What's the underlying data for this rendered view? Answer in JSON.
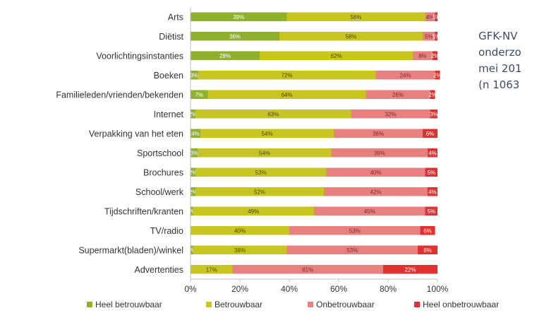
{
  "chart_data": {
    "type": "bar",
    "orientation": "horizontal",
    "stacked": true,
    "categories": [
      "Arts",
      "Diëtist",
      "Voorlichtingsinstanties",
      "Boeken",
      "Familieleden/vrienden/bekenden",
      "Internet",
      "Verpakking van het eten",
      "Sportschool",
      "Brochures",
      "School/werk",
      "Tijdschriften/kranten",
      "TV/radio",
      "Supermarkt(bladen)/winkel",
      "Advertenties"
    ],
    "series": [
      {
        "name": "Heel betrouwbaar",
        "color": "#8fb02c",
        "text_color": "#ffffff",
        "values": [
          39,
          36,
          28,
          3,
          7,
          2,
          4,
          3,
          2,
          2,
          1,
          0,
          1,
          0
        ],
        "labels": [
          "39%",
          "36%",
          "28%",
          "3%",
          "7%",
          "2%",
          "4%",
          "3%",
          "2%",
          "2%",
          "1%",
          "",
          "1%",
          ""
        ]
      },
      {
        "name": "Betrouwbaar",
        "color": "#c8c520",
        "text_color": "#4a4a10",
        "values": [
          56,
          58,
          62,
          72,
          64,
          63,
          54,
          54,
          53,
          52,
          49,
          40,
          38,
          17
        ],
        "labels": [
          "56%",
          "58%",
          "62%",
          "72%",
          "64%",
          "63%",
          "54%",
          "54%",
          "53%",
          "52%",
          "49%",
          "40%",
          "38%",
          "17%"
        ]
      },
      {
        "name": "Onbetrouwbaar",
        "color": "#e88080",
        "text_color": "#7a2a2a",
        "values": [
          4,
          5,
          8,
          24,
          26,
          32,
          36,
          39,
          40,
          42,
          45,
          53,
          53,
          61
        ],
        "labels": [
          "4%",
          "5%",
          "8%",
          "24%",
          "26%",
          "32%",
          "36%",
          "39%",
          "40%",
          "42%",
          "45%",
          "53%",
          "53%",
          "61%"
        ]
      },
      {
        "name": "Heel onbetrouwbaar",
        "color": "#e03030",
        "text_color": "#ffffff",
        "values": [
          1,
          1,
          2,
          2,
          2,
          3,
          6,
          4,
          5,
          4,
          5,
          6,
          8,
          22
        ],
        "labels": [
          "1%",
          "1%",
          "2%",
          "2%",
          "2%",
          "3%",
          "6%",
          "4%",
          "5%",
          "4%",
          "5%",
          "6%",
          "8%",
          "22%"
        ]
      }
    ],
    "xlim": [
      0,
      100
    ],
    "xticks": [
      "0%",
      "20%",
      "40%",
      "60%",
      "80%",
      "100%"
    ],
    "grid": false,
    "legend_position": "bottom"
  },
  "side_note": [
    "GFK-NV",
    "onderzo",
    "mei 201",
    "(n 1063"
  ]
}
